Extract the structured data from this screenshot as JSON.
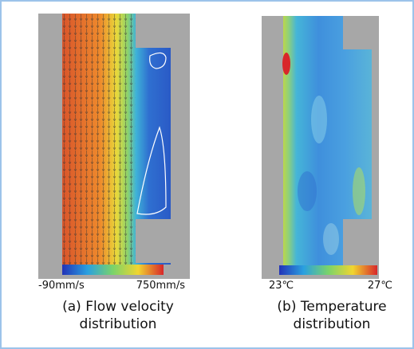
{
  "panels": [
    {
      "colorbar": {
        "min_label": "-90mm/s",
        "max_label": "750mm/s"
      },
      "caption": [
        "(a) Flow velocity",
        "distribution"
      ]
    },
    {
      "colorbar": {
        "min_label": "23℃",
        "max_label": "27℃"
      },
      "caption": [
        "(b) Temperature",
        "distribution"
      ]
    }
  ]
}
